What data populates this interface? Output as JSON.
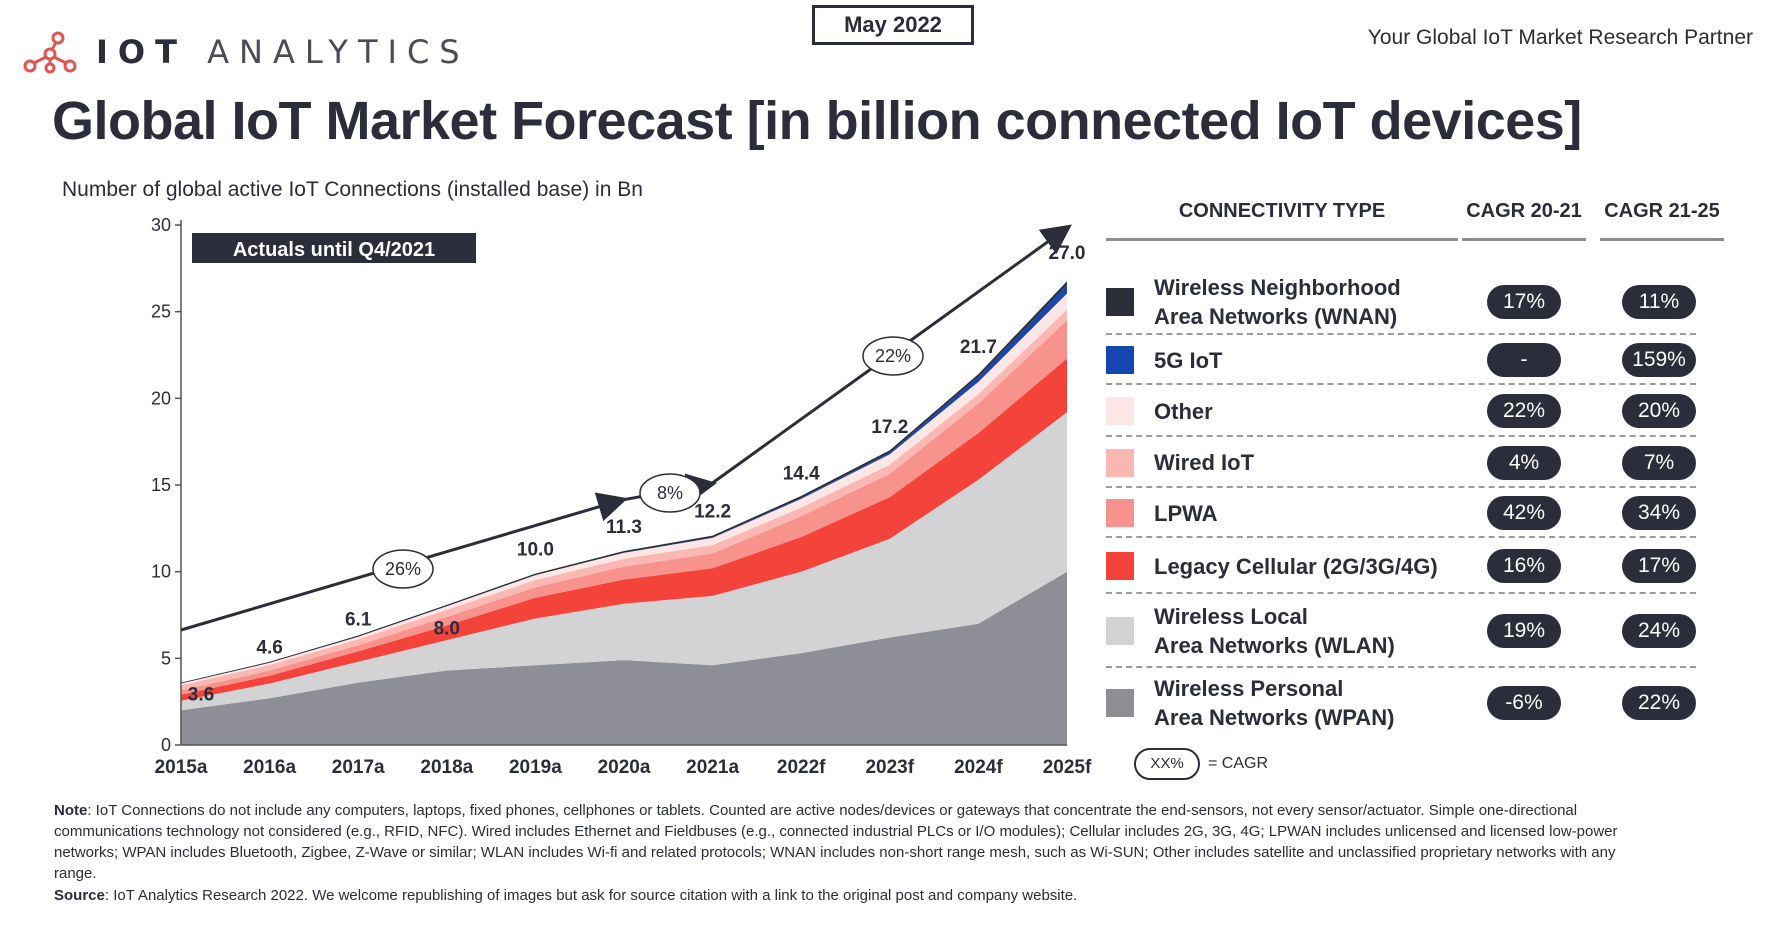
{
  "brand": {
    "logo_bold": "IOT",
    "logo_light": "ANALYTICS",
    "tagline": "Your Global IoT Market Research Partner",
    "date": "May 2022"
  },
  "title": "Global IoT Market Forecast [in billion connected IoT devices]",
  "chart_data": {
    "type": "area",
    "subtitle": "Number of global active IoT Connections (installed base) in Bn",
    "actuals_label": "Actuals until Q4/2021",
    "categories": [
      "2015a",
      "2016a",
      "2017a",
      "2018a",
      "2019a",
      "2020a",
      "2021a",
      "2022f",
      "2023f",
      "2024f",
      "2025f"
    ],
    "totals": [
      3.6,
      4.6,
      6.1,
      8.0,
      10.0,
      11.3,
      12.2,
      14.4,
      17.2,
      21.7,
      27.0
    ],
    "ylim": [
      0,
      30
    ],
    "yticks": [
      "0",
      "5",
      "10",
      "15",
      "20",
      "25",
      "30"
    ],
    "series": [
      {
        "name": "Wireless Personal Area Networks (WPAN)",
        "color": "#8e8f96",
        "values": [
          2.0,
          2.7,
          3.6,
          4.3,
          4.6,
          4.9,
          4.6,
          5.3,
          6.2,
          7.0,
          10.0
        ]
      },
      {
        "name": "Wireless Local Area Networks (WLAN)",
        "color": "#d3d3d6",
        "values": [
          0.55,
          0.85,
          1.2,
          1.75,
          2.7,
          3.25,
          4.0,
          4.7,
          5.7,
          8.3,
          9.2
        ]
      },
      {
        "name": "Legacy Cellular (2G/3G/4G)",
        "color": "#f4433a",
        "values": [
          0.35,
          0.45,
          0.6,
          0.85,
          1.2,
          1.4,
          1.6,
          2.0,
          2.4,
          2.7,
          3.1
        ]
      },
      {
        "name": "LPWA",
        "color": "#f8928d",
        "values": [
          0.25,
          0.3,
          0.35,
          0.5,
          0.6,
          0.75,
          0.85,
          1.2,
          1.35,
          1.7,
          2.2
        ]
      },
      {
        "name": "Wired IoT",
        "color": "#fbb8b2",
        "values": [
          0.3,
          0.32,
          0.35,
          0.4,
          0.42,
          0.45,
          0.48,
          0.5,
          0.52,
          0.55,
          0.6
        ]
      },
      {
        "name": "Other",
        "color": "#fde7e6",
        "values": [
          0.1,
          0.12,
          0.15,
          0.2,
          0.28,
          0.34,
          0.42,
          0.5,
          0.6,
          0.7,
          0.95
        ]
      },
      {
        "name": "5G IoT",
        "color": "#1746b3",
        "values": [
          0,
          0,
          0,
          0,
          0,
          0,
          0.02,
          0.05,
          0.1,
          0.3,
          0.5
        ]
      },
      {
        "name": "Wireless Neighborhood Area Networks (WNAN)",
        "color": "#2b2d3a",
        "values": [
          0.05,
          0.06,
          0.07,
          0.08,
          0.09,
          0.1,
          0.11,
          0.12,
          0.13,
          0.15,
          0.2
        ]
      }
    ],
    "cagr_annotations": [
      {
        "label": "26%",
        "from": "2015a",
        "to": "2020a"
      },
      {
        "label": "8%",
        "from": "2020a",
        "to": "2021a"
      },
      {
        "label": "22%",
        "from": "2021a",
        "to": "2025f"
      }
    ]
  },
  "table": {
    "headers": {
      "type": "CONNECTIVITY TYPE",
      "cagr1": "CAGR 20-21",
      "cagr2": "CAGR 21-25"
    },
    "rows": [
      {
        "label": "Wireless Neighborhood\nArea Networks (WNAN)",
        "color": "#2b2d3a",
        "cagr1": "17%",
        "cagr2": "11%"
      },
      {
        "label": "5G IoT",
        "color": "#1746b3",
        "cagr1": "-",
        "cagr2": "159%"
      },
      {
        "label": "Other",
        "color": "#fde7e6",
        "cagr1": "22%",
        "cagr2": "20%"
      },
      {
        "label": "Wired IoT",
        "color": "#fbb8b2",
        "cagr1": "4%",
        "cagr2": "7%"
      },
      {
        "label": "LPWA",
        "color": "#f8928d",
        "cagr1": "42%",
        "cagr2": "34%"
      },
      {
        "label": "Legacy Cellular (2G/3G/4G)",
        "color": "#f4433a",
        "cagr1": "16%",
        "cagr2": "17%"
      },
      {
        "label": "Wireless Local\nArea Networks (WLAN)",
        "color": "#d3d3d6",
        "cagr1": "19%",
        "cagr2": "24%"
      },
      {
        "label": "Wireless Personal\nArea Networks (WPAN)",
        "color": "#8e8f96",
        "cagr1": "-6%",
        "cagr2": "22%"
      }
    ],
    "cagr_key": {
      "sample": "XX%",
      "text": "= CAGR"
    }
  },
  "footnote": {
    "note_label": "Note",
    "note_text": ": IoT Connections do not include any computers, laptops, fixed phones, cellphones or tablets. Counted are active nodes/devices or gateways that concentrate the end-sensors, not every sensor/actuator. Simple one-directional communications technology not considered (e.g., RFID, NFC). Wired includes Ethernet and Fieldbuses (e.g., connected industrial PLCs or I/O modules); Cellular includes 2G, 3G, 4G;  LPWAN includes unlicensed and licensed low-power networks; WPAN includes Bluetooth, Zigbee, Z-Wave or similar; WLAN includes Wi-fi and related protocols; WNAN includes non-short range mesh, such as Wi-SUN; Other includes satellite and unclassified proprietary networks with any range.",
    "source_label": "Source",
    "source_text": ": IoT Analytics Research 2022. We welcome republishing of images but ask for source citation with a link to the original post and company website."
  }
}
